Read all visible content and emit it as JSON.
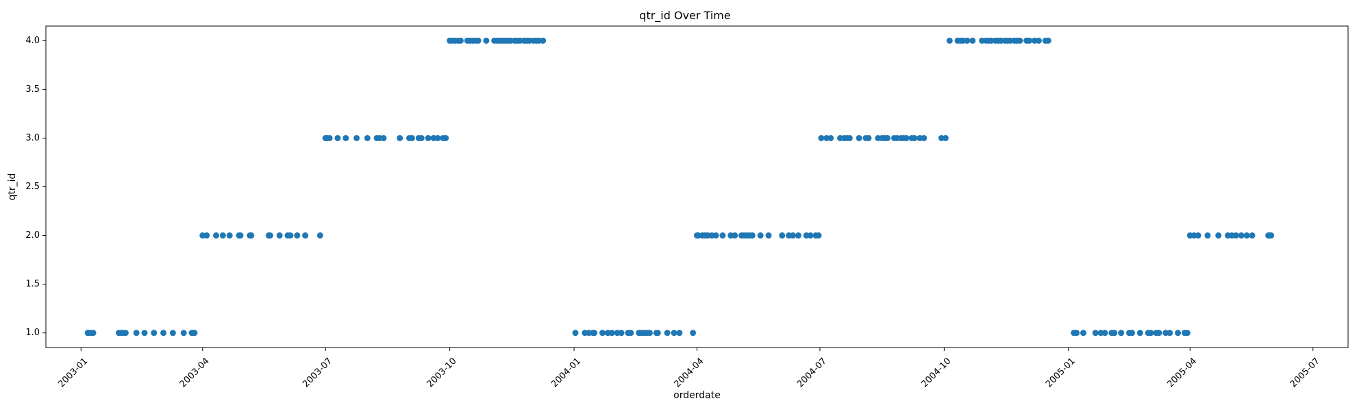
{
  "chart_data": {
    "type": "scatter",
    "title": "qtr_id Over Time",
    "xlabel": "orderdate",
    "ylabel": "qtr_id",
    "x_type": "date",
    "xlim": [
      "2002-12-06",
      "2005-07-27"
    ],
    "ylim": [
      0.85,
      4.15
    ],
    "x_ticks": [
      "2003-01",
      "2003-04",
      "2003-07",
      "2003-10",
      "2004-01",
      "2004-04",
      "2004-07",
      "2004-10",
      "2005-01",
      "2005-04",
      "2005-07"
    ],
    "y_ticks": [
      "1.0",
      "1.5",
      "2.0",
      "2.5",
      "3.0",
      "3.5",
      "4.0"
    ],
    "grid": false,
    "legend": "none",
    "marker_color": "#1f77b4",
    "series": [
      {
        "x": [
          "2003-01-06",
          "2003-01-07",
          "2003-01-09",
          "2003-01-10",
          "2003-01-29",
          "2003-01-31",
          "2003-02-01",
          "2003-02-03",
          "2003-02-11",
          "2003-02-17",
          "2003-02-24",
          "2003-03-03",
          "2003-03-10",
          "2003-03-18",
          "2003-03-24",
          "2003-03-25",
          "2003-03-26",
          "2003-04-01",
          "2003-04-04",
          "2003-04-11",
          "2003-04-16",
          "2003-04-21",
          "2003-04-28",
          "2003-04-29",
          "2003-05-06",
          "2003-05-07",
          "2003-05-20",
          "2003-05-21",
          "2003-05-28",
          "2003-06-03",
          "2003-06-05",
          "2003-06-10",
          "2003-06-16",
          "2003-06-27",
          "2003-07-01",
          "2003-07-02",
          "2003-07-04",
          "2003-07-10",
          "2003-07-16",
          "2003-07-24",
          "2003-08-01",
          "2003-08-08",
          "2003-08-10",
          "2003-08-13",
          "2003-08-25",
          "2003-09-01",
          "2003-09-03",
          "2003-09-08",
          "2003-09-10",
          "2003-09-15",
          "2003-09-19",
          "2003-09-22",
          "2003-09-26",
          "2003-09-28",
          "2003-10-01",
          "2003-10-03",
          "2003-10-05",
          "2003-10-07",
          "2003-10-09",
          "2003-10-14",
          "2003-10-16",
          "2003-10-18",
          "2003-10-20",
          "2003-10-22",
          "2003-10-28",
          "2003-11-03",
          "2003-11-05",
          "2003-11-07",
          "2003-11-09",
          "2003-11-11",
          "2003-11-13",
          "2003-11-15",
          "2003-11-18",
          "2003-11-20",
          "2003-11-22",
          "2003-11-25",
          "2003-11-27",
          "2003-11-29",
          "2003-12-02",
          "2003-12-04",
          "2003-12-06",
          "2003-12-09",
          "2004-01-02",
          "2004-01-09",
          "2004-01-12",
          "2004-01-15",
          "2004-01-16",
          "2004-01-22",
          "2004-01-26",
          "2004-01-29",
          "2004-02-02",
          "2004-02-05",
          "2004-02-10",
          "2004-02-12",
          "2004-02-18",
          "2004-02-20",
          "2004-02-22",
          "2004-02-24",
          "2004-02-26",
          "2004-03-02",
          "2004-03-03",
          "2004-03-10",
          "2004-03-15",
          "2004-03-19",
          "2004-03-29",
          "2004-04-01",
          "2004-04-02",
          "2004-04-05",
          "2004-04-07",
          "2004-04-09",
          "2004-04-12",
          "2004-04-15",
          "2004-04-20",
          "2004-04-26",
          "2004-04-29",
          "2004-05-04",
          "2004-05-06",
          "2004-05-08",
          "2004-05-10",
          "2004-05-12",
          "2004-05-18",
          "2004-05-24",
          "2004-06-03",
          "2004-06-08",
          "2004-06-11",
          "2004-06-15",
          "2004-06-21",
          "2004-06-24",
          "2004-06-28",
          "2004-06-30",
          "2004-07-02",
          "2004-07-06",
          "2004-07-09",
          "2004-07-16",
          "2004-07-19",
          "2004-07-21",
          "2004-07-23",
          "2004-07-30",
          "2004-08-04",
          "2004-08-06",
          "2004-08-13",
          "2004-08-16",
          "2004-08-18",
          "2004-08-20",
          "2004-08-25",
          "2004-08-27",
          "2004-08-30",
          "2004-09-01",
          "2004-09-03",
          "2004-09-07",
          "2004-09-09",
          "2004-09-13",
          "2004-09-16",
          "2004-09-29",
          "2004-10-02",
          "2004-10-05",
          "2004-10-11",
          "2004-10-13",
          "2004-10-15",
          "2004-10-18",
          "2004-10-22",
          "2004-10-29",
          "2004-11-01",
          "2004-11-03",
          "2004-11-05",
          "2004-11-08",
          "2004-11-10",
          "2004-11-12",
          "2004-11-15",
          "2004-11-17",
          "2004-11-19",
          "2004-11-22",
          "2004-11-24",
          "2004-11-26",
          "2004-12-01",
          "2004-12-03",
          "2004-12-07",
          "2004-12-10",
          "2004-12-15",
          "2004-12-17",
          "2005-01-05",
          "2005-01-07",
          "2005-01-12",
          "2005-01-21",
          "2005-01-25",
          "2005-01-28",
          "2005-02-02",
          "2005-02-04",
          "2005-02-09",
          "2005-02-15",
          "2005-02-17",
          "2005-02-23",
          "2005-03-01",
          "2005-03-03",
          "2005-03-07",
          "2005-03-09",
          "2005-03-14",
          "2005-03-17",
          "2005-03-23",
          "2005-03-28",
          "2005-03-30",
          "2005-04-01",
          "2005-04-04",
          "2005-04-07",
          "2005-04-14",
          "2005-04-22",
          "2005-04-29",
          "2005-05-02",
          "2005-05-05",
          "2005-05-09",
          "2005-05-13",
          "2005-05-17",
          "2005-05-29",
          "2005-05-30",
          "2005-05-31"
        ],
        "y": [
          1,
          1,
          1,
          1,
          1,
          1,
          1,
          1,
          1,
          1,
          1,
          1,
          1,
          1,
          1,
          1,
          1,
          2,
          2,
          2,
          2,
          2,
          2,
          2,
          2,
          2,
          2,
          2,
          2,
          2,
          2,
          2,
          2,
          2,
          3,
          3,
          3,
          3,
          3,
          3,
          3,
          3,
          3,
          3,
          3,
          3,
          3,
          3,
          3,
          3,
          3,
          3,
          3,
          3,
          4,
          4,
          4,
          4,
          4,
          4,
          4,
          4,
          4,
          4,
          4,
          4,
          4,
          4,
          4,
          4,
          4,
          4,
          4,
          4,
          4,
          4,
          4,
          4,
          4,
          4,
          4,
          4,
          1,
          1,
          1,
          1,
          1,
          1,
          1,
          1,
          1,
          1,
          1,
          1,
          1,
          1,
          1,
          1,
          1,
          1,
          1,
          1,
          1,
          1,
          1,
          2,
          2,
          2,
          2,
          2,
          2,
          2,
          2,
          2,
          2,
          2,
          2,
          2,
          2,
          2,
          2,
          2,
          2,
          2,
          2,
          2,
          2,
          2,
          2,
          2,
          3,
          3,
          3,
          3,
          3,
          3,
          3,
          3,
          3,
          3,
          3,
          3,
          3,
          3,
          3,
          3,
          3,
          3,
          3,
          3,
          3,
          3,
          3,
          3,
          3,
          4,
          4,
          4,
          4,
          4,
          4,
          4,
          4,
          4,
          4,
          4,
          4,
          4,
          4,
          4,
          4,
          4,
          4,
          4,
          4,
          4,
          4,
          4,
          4,
          4,
          1,
          1,
          1,
          1,
          1,
          1,
          1,
          1,
          1,
          1,
          1,
          1,
          1,
          1,
          1,
          1,
          1,
          1,
          1,
          1,
          1,
          2,
          2,
          2,
          2,
          2,
          2,
          2,
          2,
          2,
          2,
          2,
          2,
          2,
          2
        ]
      }
    ]
  }
}
